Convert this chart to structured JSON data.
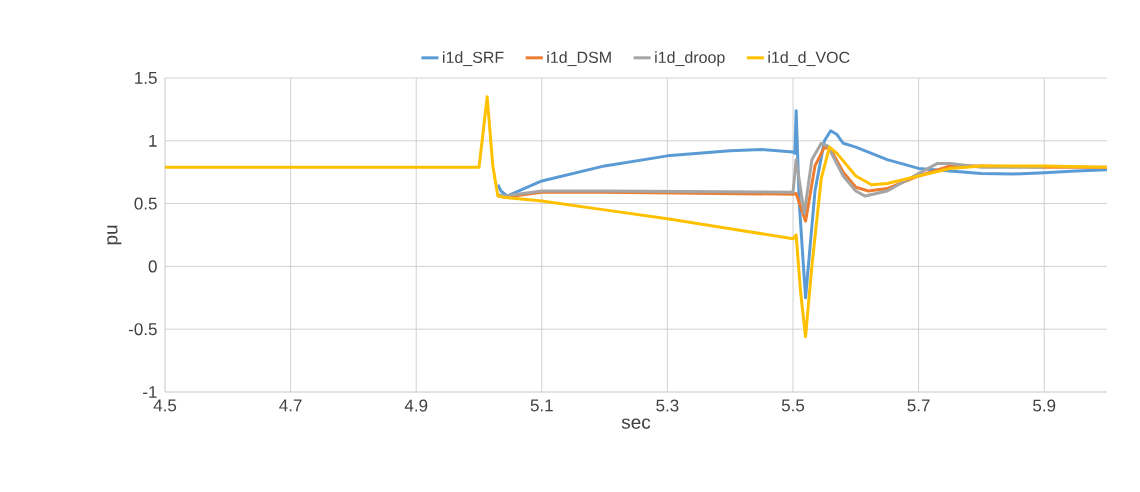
{
  "chart_data": {
    "type": "line",
    "xlabel": "sec",
    "ylabel": "pu",
    "xlim": [
      4.5,
      6.0
    ],
    "xticks": [
      4.5,
      4.7,
      4.9,
      5.1,
      5.3,
      5.5,
      5.7,
      5.9
    ],
    "ylim": [
      -1,
      1.5
    ],
    "yticks": [
      -1,
      -0.5,
      0,
      0.5,
      1,
      1.5
    ],
    "grid": true,
    "legend": "top",
    "line_style": "solid",
    "marker": "none",
    "series": [
      {
        "name": "i1d_SRF",
        "color": "#5b9bd5",
        "x": [
          5.03,
          5.035,
          5.045,
          5.1,
          5.2,
          5.3,
          5.4,
          5.45,
          5.5,
          5.503,
          5.505,
          5.51,
          5.52,
          5.535,
          5.55,
          5.56,
          5.57,
          5.58,
          5.6,
          5.65,
          5.7,
          5.75,
          5.8,
          5.85,
          5.9,
          5.95,
          6.0
        ],
        "values": [
          0.65,
          0.6,
          0.56,
          0.68,
          0.8,
          0.88,
          0.92,
          0.93,
          0.91,
          0.9,
          1.24,
          0.5,
          -0.25,
          0.6,
          1.0,
          1.08,
          1.05,
          0.98,
          0.95,
          0.85,
          0.78,
          0.76,
          0.74,
          0.735,
          0.745,
          0.76,
          0.77
        ]
      },
      {
        "name": "i1d_DSM",
        "color": "#ed7d31",
        "x": [
          5.03,
          5.04,
          5.1,
          5.2,
          5.3,
          5.4,
          5.5,
          5.505,
          5.52,
          5.535,
          5.55,
          5.56,
          5.58,
          5.6,
          5.62,
          5.65,
          5.7,
          5.75,
          5.8,
          5.9,
          6.0
        ],
        "values": [
          0.57,
          0.55,
          0.59,
          0.59,
          0.585,
          0.58,
          0.575,
          0.58,
          0.36,
          0.8,
          0.95,
          0.93,
          0.75,
          0.63,
          0.6,
          0.62,
          0.72,
          0.8,
          0.8,
          0.79,
          0.79
        ]
      },
      {
        "name": "i1d_droop",
        "color": "#a5a5a5",
        "x": [
          5.03,
          5.04,
          5.1,
          5.2,
          5.5,
          5.505,
          5.518,
          5.53,
          5.545,
          5.555,
          5.58,
          5.6,
          5.615,
          5.65,
          5.7,
          5.73,
          5.75,
          5.8,
          5.9
        ],
        "values": [
          0.57,
          0.56,
          0.6,
          0.6,
          0.59,
          0.85,
          0.42,
          0.85,
          0.98,
          0.96,
          0.72,
          0.6,
          0.56,
          0.6,
          0.74,
          0.82,
          0.82,
          0.79,
          0.79
        ]
      },
      {
        "name": "i1d_d_VOC",
        "color": "#ffc000",
        "x": [
          4.5,
          5.0,
          5.005,
          5.013,
          5.022,
          5.03,
          5.04,
          5.1,
          5.2,
          5.3,
          5.4,
          5.5,
          5.505,
          5.512,
          5.52,
          5.53,
          5.545,
          5.558,
          5.57,
          5.6,
          5.625,
          5.65,
          5.7,
          5.75,
          5.8,
          5.9,
          6.0
        ],
        "values": [
          0.79,
          0.79,
          1.0,
          1.35,
          0.8,
          0.56,
          0.55,
          0.52,
          0.45,
          0.38,
          0.3,
          0.22,
          0.25,
          -0.2,
          -0.56,
          0.0,
          0.7,
          0.95,
          0.9,
          0.72,
          0.65,
          0.66,
          0.72,
          0.78,
          0.8,
          0.8,
          0.79
        ]
      }
    ]
  }
}
